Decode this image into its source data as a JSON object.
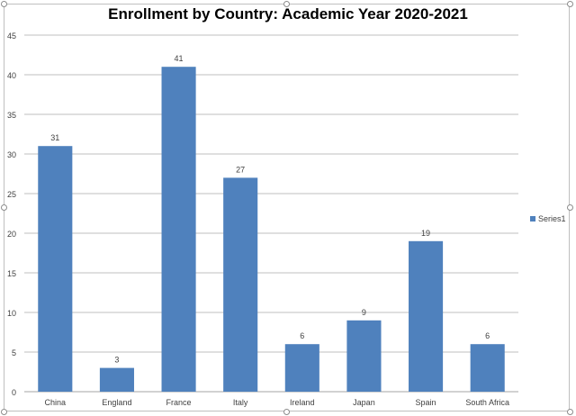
{
  "chart_data": {
    "type": "bar",
    "title": "Enrollment by Country: Academic Year 2020-2021",
    "xlabel": "",
    "ylabel": "",
    "categories": [
      "China",
      "England",
      "France",
      "Italy",
      "Ireland",
      "Japan",
      "Spain",
      "South Africa"
    ],
    "series": [
      {
        "name": "Series1",
        "values": [
          31,
          3,
          41,
          27,
          6,
          9,
          19,
          6
        ],
        "color": "#4f81bd"
      }
    ],
    "ylim": [
      0,
      45
    ],
    "yticks": [
      0,
      5,
      10,
      15,
      20,
      25,
      30,
      35,
      40,
      45
    ],
    "grid": true,
    "legend_position": "right",
    "data_labels": true
  }
}
